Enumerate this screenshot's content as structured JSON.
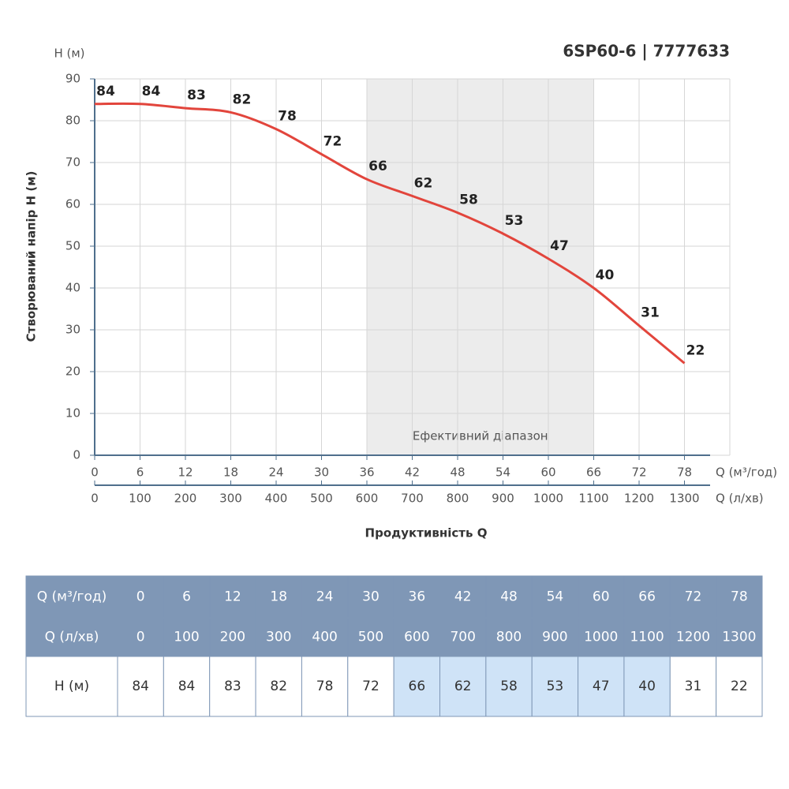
{
  "chart_data": {
    "type": "line",
    "title": "6SP60-6 | 7777633",
    "y_unit": "H (м)",
    "ylabel": "Створюваний напір H (м)",
    "xlabel": "Продуктивність Q",
    "x_unit": "Q (м³/год)",
    "x2_unit": "Q (л/хв)",
    "x": [
      0,
      6,
      12,
      18,
      24,
      30,
      36,
      42,
      48,
      54,
      60,
      66,
      72,
      78
    ],
    "series": [
      {
        "color": "#e2453c",
        "values": [
          84,
          84,
          83,
          82,
          78,
          72,
          66,
          62,
          58,
          53,
          47,
          40,
          31,
          22
        ]
      }
    ],
    "xlim": [
      0,
      84
    ],
    "xticks": [
      0,
      6,
      12,
      18,
      24,
      30,
      36,
      42,
      48,
      54,
      60,
      66,
      72,
      78
    ],
    "x2lim": [
      0,
      1400
    ],
    "x2ticks": [
      0,
      100,
      200,
      300,
      400,
      500,
      600,
      700,
      800,
      900,
      1000,
      1100,
      1200,
      1300
    ],
    "ylim": [
      0,
      90
    ],
    "yticks": [
      0,
      10,
      20,
      30,
      40,
      50,
      60,
      70,
      80,
      90
    ],
    "grid": true,
    "data_labels": true,
    "efficient_range": {
      "label": "Ефективний діапазон",
      "from": 36,
      "to": 66
    }
  }
}
